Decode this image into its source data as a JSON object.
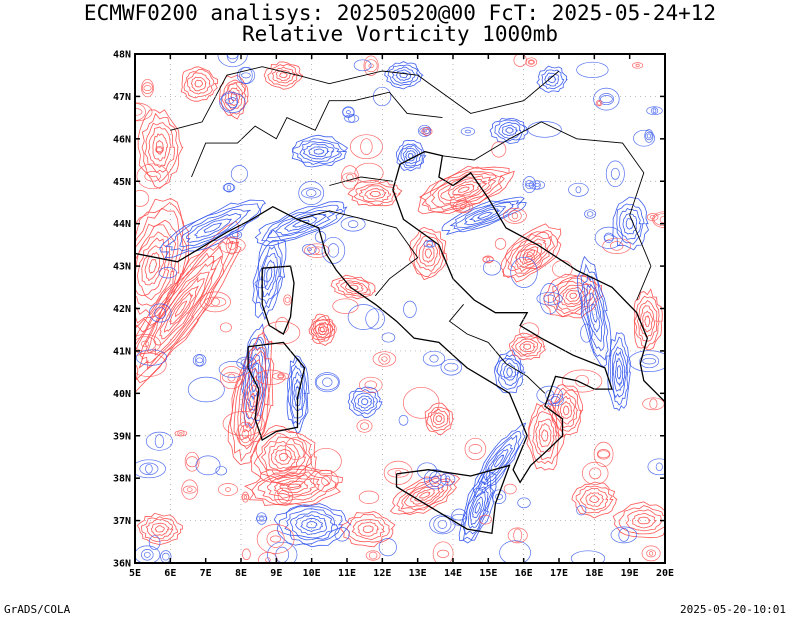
{
  "title_line1": "ECMWF0200 analisys: 20250520@00 FcT: 2025-05-24+12",
  "title_line2": "Relative Vorticity 1000mb",
  "lat_labels": [
    "48N",
    "47N",
    "46N",
    "45N",
    "44N",
    "43N",
    "42N",
    "41N",
    "40N",
    "39N",
    "38N",
    "37N",
    "36N"
  ],
  "lon_labels": [
    "5E",
    "6E",
    "7E",
    "8E",
    "9E",
    "10E",
    "11E",
    "12E",
    "13E",
    "14E",
    "15E",
    "16E",
    "17E",
    "18E",
    "19E",
    "20E"
  ],
  "footer_left": "GrADS/COLA",
  "footer_right": "2025-05-20-10:01",
  "colors": {
    "positive_vorticity": "#ff4d4d",
    "negative_vorticity": "#3355ee",
    "coastline": "#000000",
    "background": "#ffffff"
  }
}
